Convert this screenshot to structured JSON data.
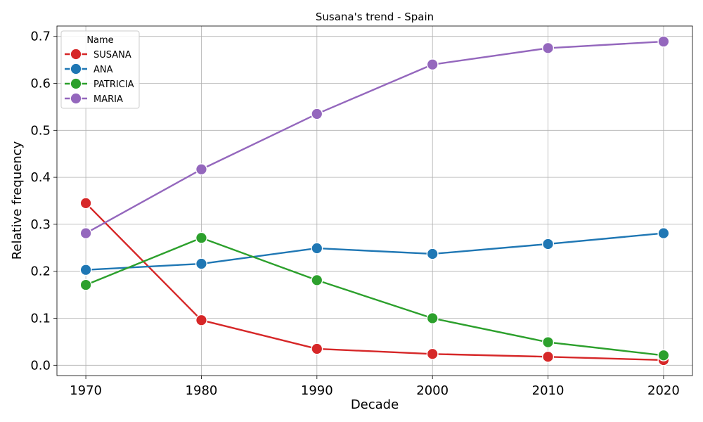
{
  "chart_data": {
    "type": "line",
    "title": "Susana's trend - Spain",
    "xlabel": "Decade",
    "ylabel": "Relative frequency",
    "x": [
      1970,
      1980,
      1990,
      2000,
      2010,
      2020
    ],
    "xlim": [
      1967.5,
      2022.5
    ],
    "ylim": [
      -0.022,
      0.722
    ],
    "yticks": [
      0.0,
      0.1,
      0.2,
      0.3,
      0.4,
      0.5,
      0.6,
      0.7
    ],
    "ytick_labels": [
      "0.0",
      "0.1",
      "0.2",
      "0.3",
      "0.4",
      "0.5",
      "0.6",
      "0.7"
    ],
    "xtick_labels": [
      "1970",
      "1980",
      "1990",
      "2000",
      "2010",
      "2020"
    ],
    "grid": true,
    "legend": {
      "title": "Name",
      "placement": "top-left"
    },
    "series": [
      {
        "name": "SUSANA",
        "color": "#d62728",
        "values": [
          0.345,
          0.096,
          0.035,
          0.024,
          0.018,
          0.011
        ]
      },
      {
        "name": "ANA",
        "color": "#1f77b4",
        "values": [
          0.203,
          0.216,
          0.249,
          0.237,
          0.258,
          0.281
        ]
      },
      {
        "name": "PATRICIA",
        "color": "#2ca02c",
        "values": [
          0.171,
          0.271,
          0.181,
          0.1,
          0.049,
          0.021
        ]
      },
      {
        "name": "MARIA",
        "color": "#9467bd",
        "values": [
          0.281,
          0.417,
          0.535,
          0.64,
          0.675,
          0.689
        ]
      }
    ]
  }
}
